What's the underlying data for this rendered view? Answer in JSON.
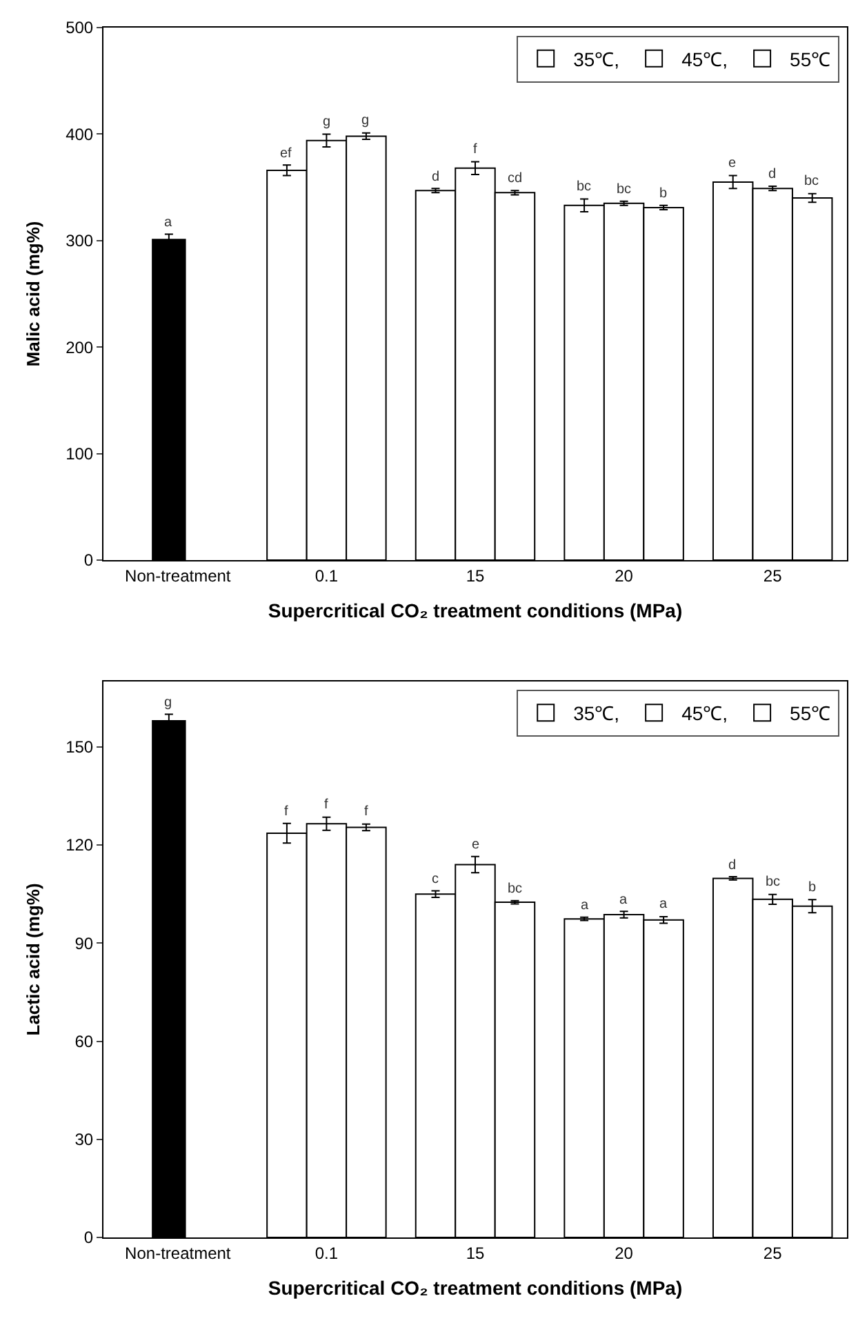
{
  "chart_data": [
    {
      "type": "bar",
      "xlabel": "Supercritical CO₂ treatment conditions (MPa)",
      "ylabel": "Malic acid (mg%)",
      "categories": [
        "Non-treatment",
        "0.1",
        "15",
        "20",
        "25"
      ],
      "ylim": [
        0,
        500
      ],
      "yticks": [
        0,
        100,
        200,
        300,
        400,
        500
      ],
      "legend": "top right",
      "series": [
        {
          "color": "#000000",
          "values": [
            301,
            null,
            null,
            null,
            null
          ],
          "errors": [
            5,
            null,
            null,
            null,
            null
          ],
          "value_labels": [
            "a",
            null,
            null,
            null,
            null
          ]
        },
        {
          "name": "35℃,",
          "color": "#ffffff",
          "values": [
            null,
            366,
            347,
            333,
            355
          ],
          "errors": [
            null,
            5,
            2,
            6,
            6
          ],
          "value_labels": [
            null,
            "ef",
            "d",
            "bc",
            "e"
          ]
        },
        {
          "name": "45℃,",
          "color": "#ffffff",
          "values": [
            null,
            394,
            368,
            335,
            349
          ],
          "errors": [
            null,
            6,
            6,
            2,
            2
          ],
          "value_labels": [
            null,
            "g",
            "f",
            "bc",
            "d"
          ]
        },
        {
          "name": "55℃",
          "color": "#ffffff",
          "values": [
            null,
            398,
            345,
            331,
            340
          ],
          "errors": [
            null,
            3,
            2,
            2,
            4
          ],
          "value_labels": [
            null,
            "g",
            "cd",
            "b",
            "bc"
          ]
        }
      ]
    },
    {
      "type": "bar",
      "xlabel": "Supercritical CO₂ treatment conditions (MPa)",
      "ylabel": "Lactic acid (mg%)",
      "categories": [
        "Non-treatment",
        "0.1",
        "15",
        "20",
        "25"
      ],
      "ylim": [
        0,
        170
      ],
      "yticks": [
        0,
        30,
        60,
        90,
        120,
        150
      ],
      "legend": "top right",
      "series": [
        {
          "color": "#000000",
          "values": [
            158,
            null,
            null,
            null,
            null
          ],
          "errors": [
            2,
            null,
            null,
            null,
            null
          ],
          "value_labels": [
            "g",
            null,
            null,
            null,
            null
          ]
        },
        {
          "name": "35℃,",
          "color": "#ffffff",
          "values": [
            null,
            123.6,
            105,
            97.4,
            109.8
          ],
          "errors": [
            null,
            3,
            1,
            0.5,
            0.5
          ],
          "value_labels": [
            null,
            "f",
            "c",
            "a",
            "d"
          ]
        },
        {
          "name": "45℃,",
          "color": "#ffffff",
          "values": [
            null,
            126.5,
            114,
            98.7,
            103.4
          ],
          "errors": [
            null,
            2,
            2.5,
            1,
            1.5
          ],
          "value_labels": [
            null,
            "f",
            "e",
            "a",
            "bc"
          ]
        },
        {
          "name": "55℃",
          "color": "#ffffff",
          "values": [
            null,
            125.4,
            102.5,
            97.1,
            101.3
          ],
          "errors": [
            null,
            1,
            0.5,
            1,
            2
          ],
          "value_labels": [
            null,
            "f",
            "bc",
            "a",
            "b"
          ]
        }
      ]
    }
  ]
}
